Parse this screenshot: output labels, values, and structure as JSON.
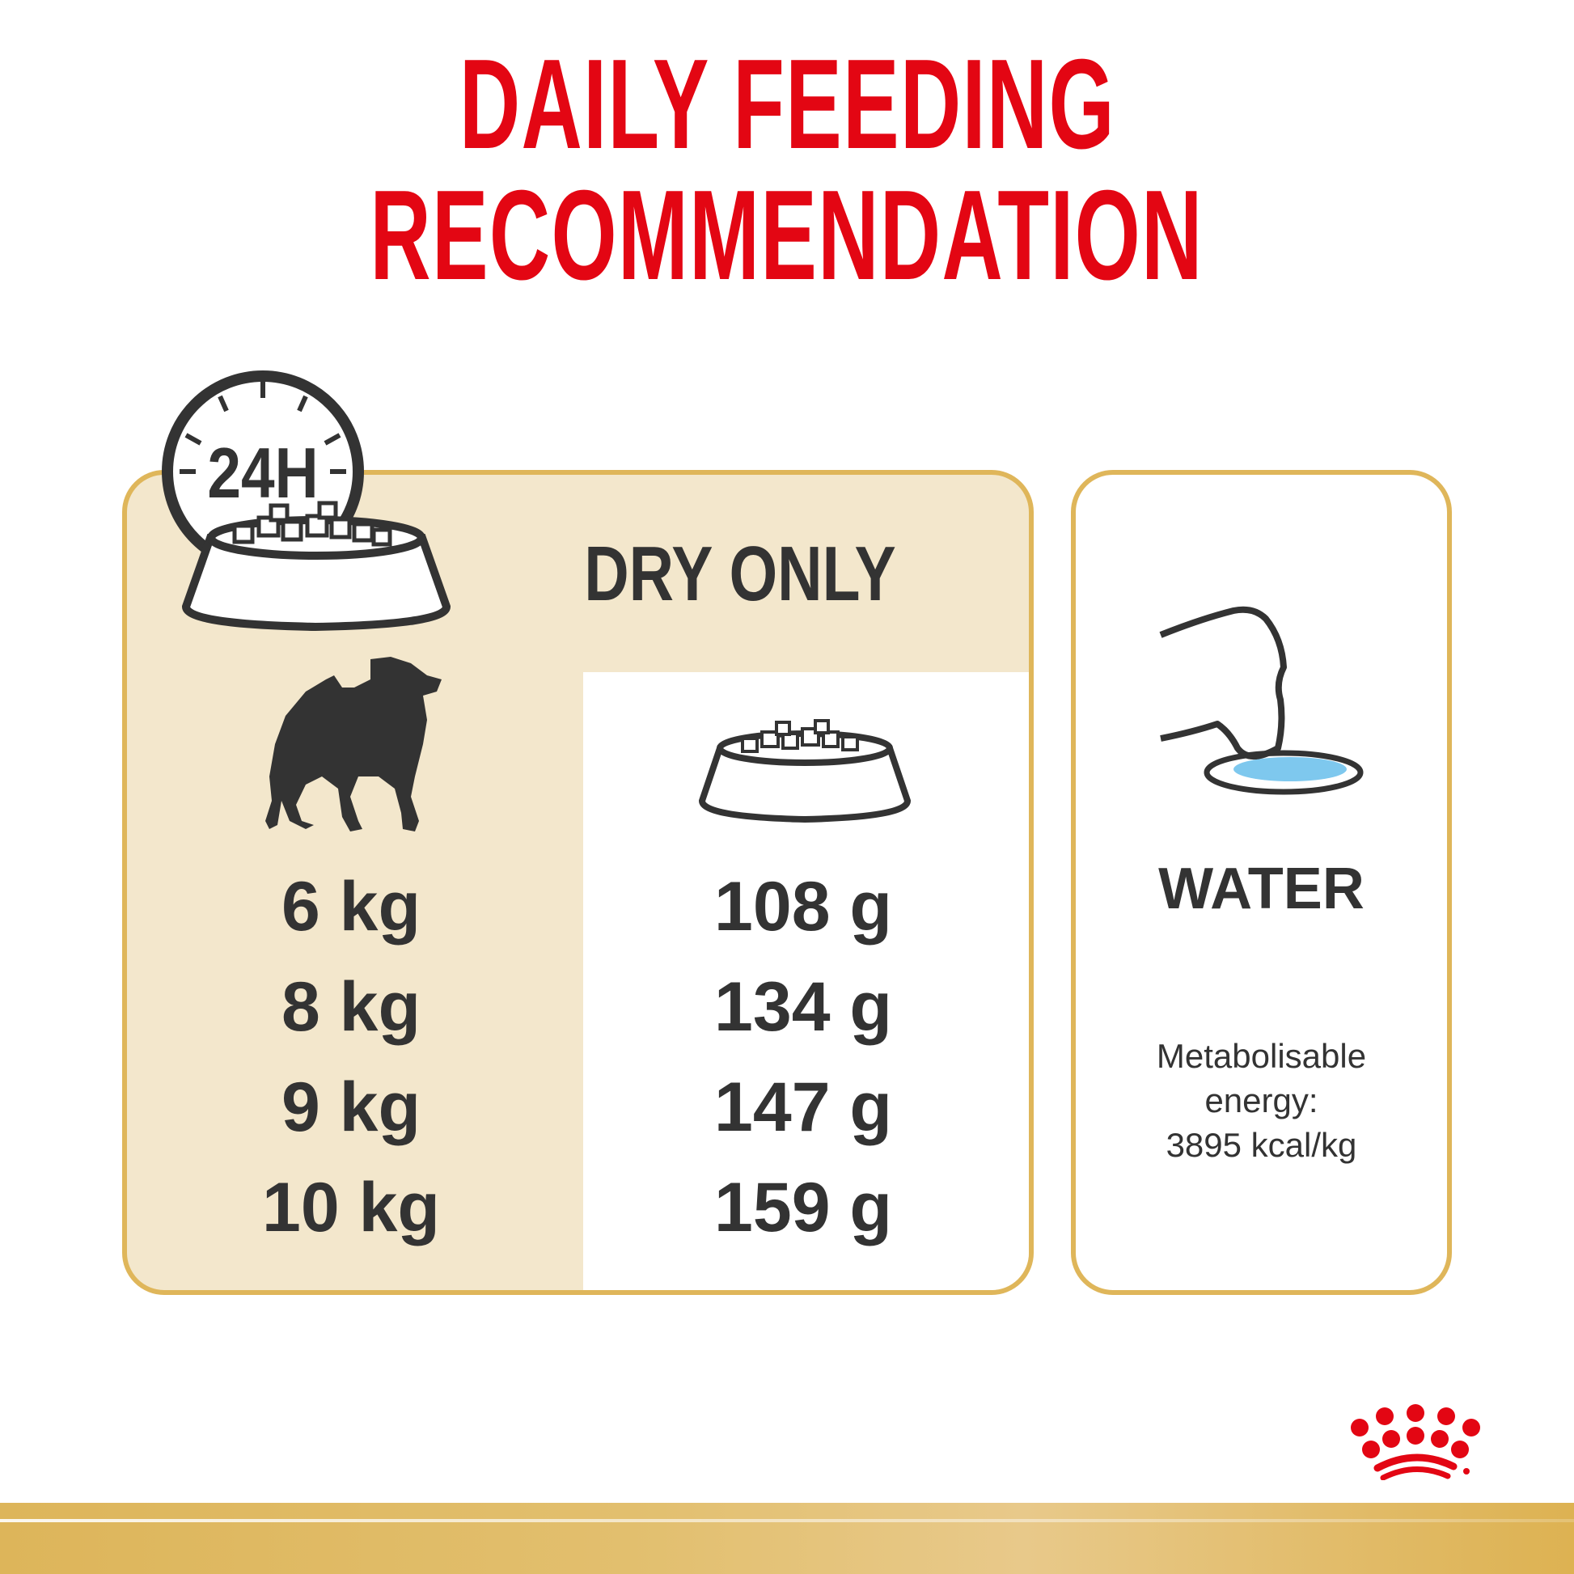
{
  "header": {
    "line1": "DAILY FEEDING",
    "line2": "RECOMMENDATION"
  },
  "dry_panel": {
    "heading": "DRY ONLY",
    "clock_label": "24H",
    "rows": [
      {
        "weight": "6 kg",
        "amount": "108 g"
      },
      {
        "weight": "8 kg",
        "amount": "134 g"
      },
      {
        "weight": "9 kg",
        "amount": "147 g"
      },
      {
        "weight": "10 kg",
        "amount": "159 g"
      }
    ]
  },
  "water_panel": {
    "heading": "WATER",
    "energy_line1": "Metabolisable",
    "energy_line2": "energy:",
    "energy_line3": "3895 kcal/kg"
  },
  "brand": {
    "logo": "royal-canin-crown-logo"
  },
  "colors": {
    "red": "#e30613",
    "gold": "#dfb65a",
    "cream": "#f3e7cc",
    "dark": "#333333",
    "water": "#7ec8ee"
  }
}
